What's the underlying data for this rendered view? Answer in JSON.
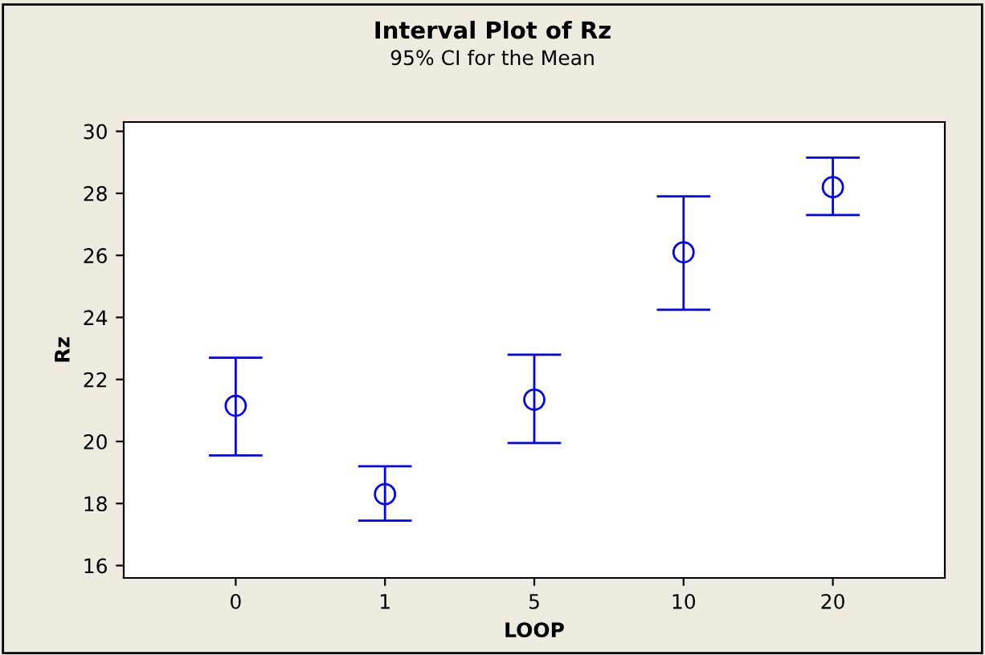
{
  "chart_data": {
    "type": "scatter",
    "title": "Interval Plot of Rz",
    "subtitle": "95% CI for the Mean",
    "xlabel": "LOOP",
    "ylabel": "Rz",
    "categories": [
      "0",
      "1",
      "5",
      "10",
      "20"
    ],
    "series": [
      {
        "color": "#0000ff",
        "values": [
          21.15,
          18.3,
          21.35,
          26.1,
          28.2
        ],
        "errors": [
          [
            19.55,
            22.7
          ],
          [
            17.45,
            19.2
          ],
          [
            19.95,
            22.8
          ],
          [
            24.25,
            27.9
          ],
          [
            27.3,
            29.15
          ]
        ]
      }
    ],
    "ylim": [
      15.6,
      30.3
    ],
    "yticks": [
      16,
      18,
      20,
      22,
      24,
      26,
      28,
      30
    ],
    "grid": false,
    "legend": false,
    "marker": "circle"
  }
}
